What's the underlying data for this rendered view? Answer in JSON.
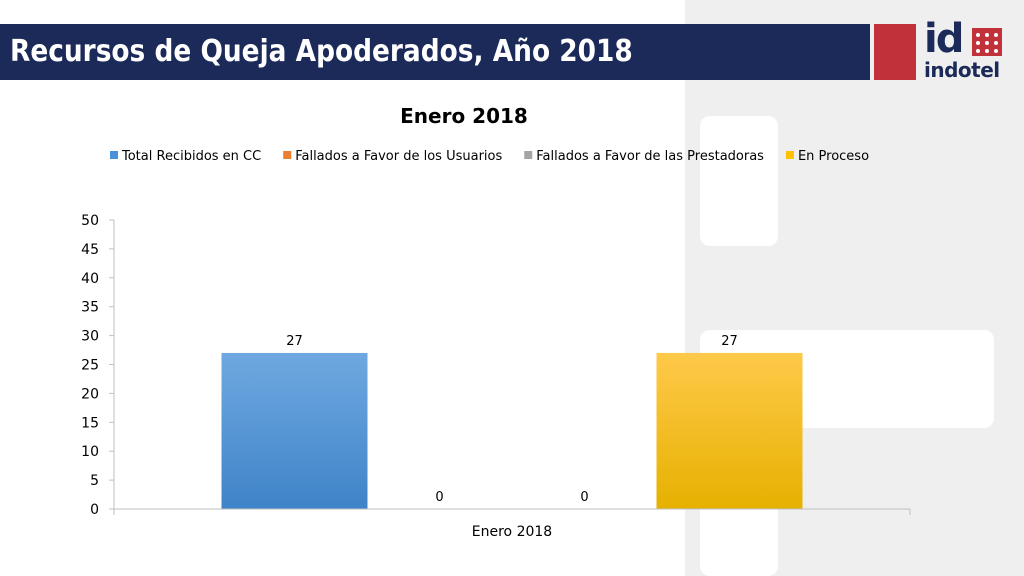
{
  "slide": {
    "title": "Recursos de Queja Apoderados, Año 2018",
    "title_bg": "#1b2a59"
  },
  "logo": {
    "mark": "id",
    "word": "indotel",
    "red": "#c0313a",
    "navy": "#1b2a59"
  },
  "chart_data": {
    "type": "bar",
    "title": "Enero 2018",
    "categories": [
      "Enero 2018"
    ],
    "series": [
      {
        "name": "Total Recibidos en CC",
        "values": [
          27
        ],
        "color": "#4a90d9"
      },
      {
        "name": "Fallados a Favor de los Usuarios",
        "values": [
          0
        ],
        "color": "#ed7d31"
      },
      {
        "name": "Fallados a Favor de las Prestadoras",
        "values": [
          0
        ],
        "color": "#a5a5a5"
      },
      {
        "name": "En Proceso",
        "values": [
          27
        ],
        "color": "#ffc000"
      }
    ],
    "ylim": [
      0,
      50
    ],
    "yticks": [
      0,
      5,
      10,
      15,
      20,
      25,
      30,
      35,
      40,
      45,
      50
    ],
    "legend_position": "top",
    "grid": false,
    "data_labels": true
  }
}
